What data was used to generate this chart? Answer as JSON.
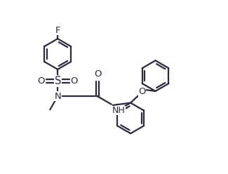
{
  "bg_color": "#ffffff",
  "line_color": "#2a2a3a",
  "line_width": 1.6,
  "font_size": 9.5,
  "r_hex": 0.72,
  "xlim": [
    0,
    10
  ],
  "ylim": [
    0,
    8
  ],
  "figsize": [
    3.25,
    2.48
  ],
  "dpi": 100
}
